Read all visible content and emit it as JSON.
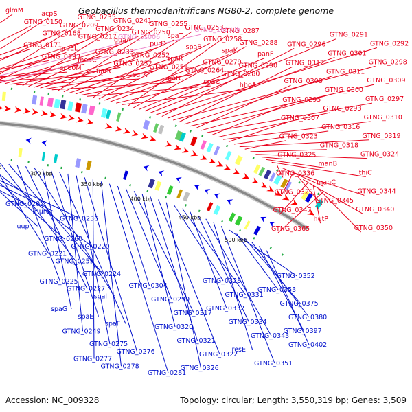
{
  "header": {
    "title": "Geobacillus thermodenitrificans NG80-2, complete genome"
  },
  "footer": {
    "accession": "Accession: NC_009328",
    "summary": "Topology: circular; Length: 3,550,319 bp; Genes: 3,509"
  },
  "colors": {
    "forward_label": "#e8001c",
    "reverse_label": "#0010cc",
    "rna_label": "#ee88cc",
    "backbone": "#888888"
  },
  "scale_ticks": [
    "200 kbp",
    "250 kbp",
    "300 kbp",
    "350 kbp",
    "400 kbp",
    "450 kbp",
    "500 kbp"
  ],
  "forward_labels": [
    "glmM",
    "GTNG_0150",
    "GTNG_0168",
    "GTNG_0171",
    "GTNG_0193",
    "spo0M",
    "acpS",
    "GTNG_0209",
    "GTNG_0217",
    "groEL",
    "moaC",
    "fumC",
    "GTNG_0235",
    "GTNG_0234",
    "guaA",
    "GTNG_0233",
    "GTNG_0232",
    "purK",
    "GTNG_0241",
    "GTNG_0250",
    "purD",
    "GTNG_0252",
    "GTNG_0251",
    "gatC",
    "GTNG_0255",
    "spaT",
    "spaB",
    "spaR",
    "GTNG_0264",
    "spaC",
    "GTNG_0253",
    "GTNG_0258",
    "spaK",
    "GTNG_0279",
    "GTNG_0280",
    "hhoA",
    "GTNG_0287",
    "GTNG_0288",
    "panF",
    "GTNG_0290",
    "GTNG_0291",
    "GTNG_0292",
    "GTNG_0296",
    "GTNG_0301",
    "GTNG_0298",
    "GTNG_0312",
    "GTNG_0311",
    "GTNG_0309",
    "GTNG_0308",
    "GTNG_0300",
    "GTNG_0297",
    "GTNG_0295",
    "GTNG_0293",
    "GTNG_0310",
    "GTNG_0307",
    "GTNG_0316",
    "GTNG_0319",
    "GTNG_0323",
    "GTNG_0318",
    "GTNG_0324",
    "GTNG_0325",
    "manB",
    "thiC",
    "GTNG_0336",
    "manC",
    "GTNG_0344",
    "GTNG_0329",
    "GTNG_0345",
    "GTNG_0340",
    "GTNG_0347",
    "hutP",
    "GTNG_0350",
    "GTNG_0365"
  ],
  "rna_labels": [
    "GTNG_5s006",
    "GTNG_16s006"
  ],
  "reverse_labels": [
    "GTNG_0202",
    "murG",
    "GTNG_0236",
    "uup",
    "GTNG_0260",
    "GTNG_0220",
    "GTNG_0221",
    "GTNG_0259",
    "GTNG_0224",
    "GTNG_0225",
    "GTNG_0227",
    "spaI",
    "spaG",
    "spaE",
    "spaF",
    "GTNG_0249",
    "GTNG_0275",
    "GTNG_0276",
    "GTNG_0277",
    "GTNG_0278",
    "GTNG_0281",
    "GTNG_0304",
    "GTNG_0299",
    "GTNG_0317",
    "GTNG_0320",
    "GTNG_0321",
    "GTNG_0322",
    "GTNG_0326",
    "GTNG_0328",
    "GTNG_0331",
    "GTNG_0332",
    "GTNG_0334",
    "GTNG_0343",
    "resE",
    "GTNG_0351",
    "GTNG_0352",
    "GTNG_0353",
    "GTNG_0375",
    "GTNG_0380",
    "GTNG_0397",
    "GTNG_0402"
  ]
}
